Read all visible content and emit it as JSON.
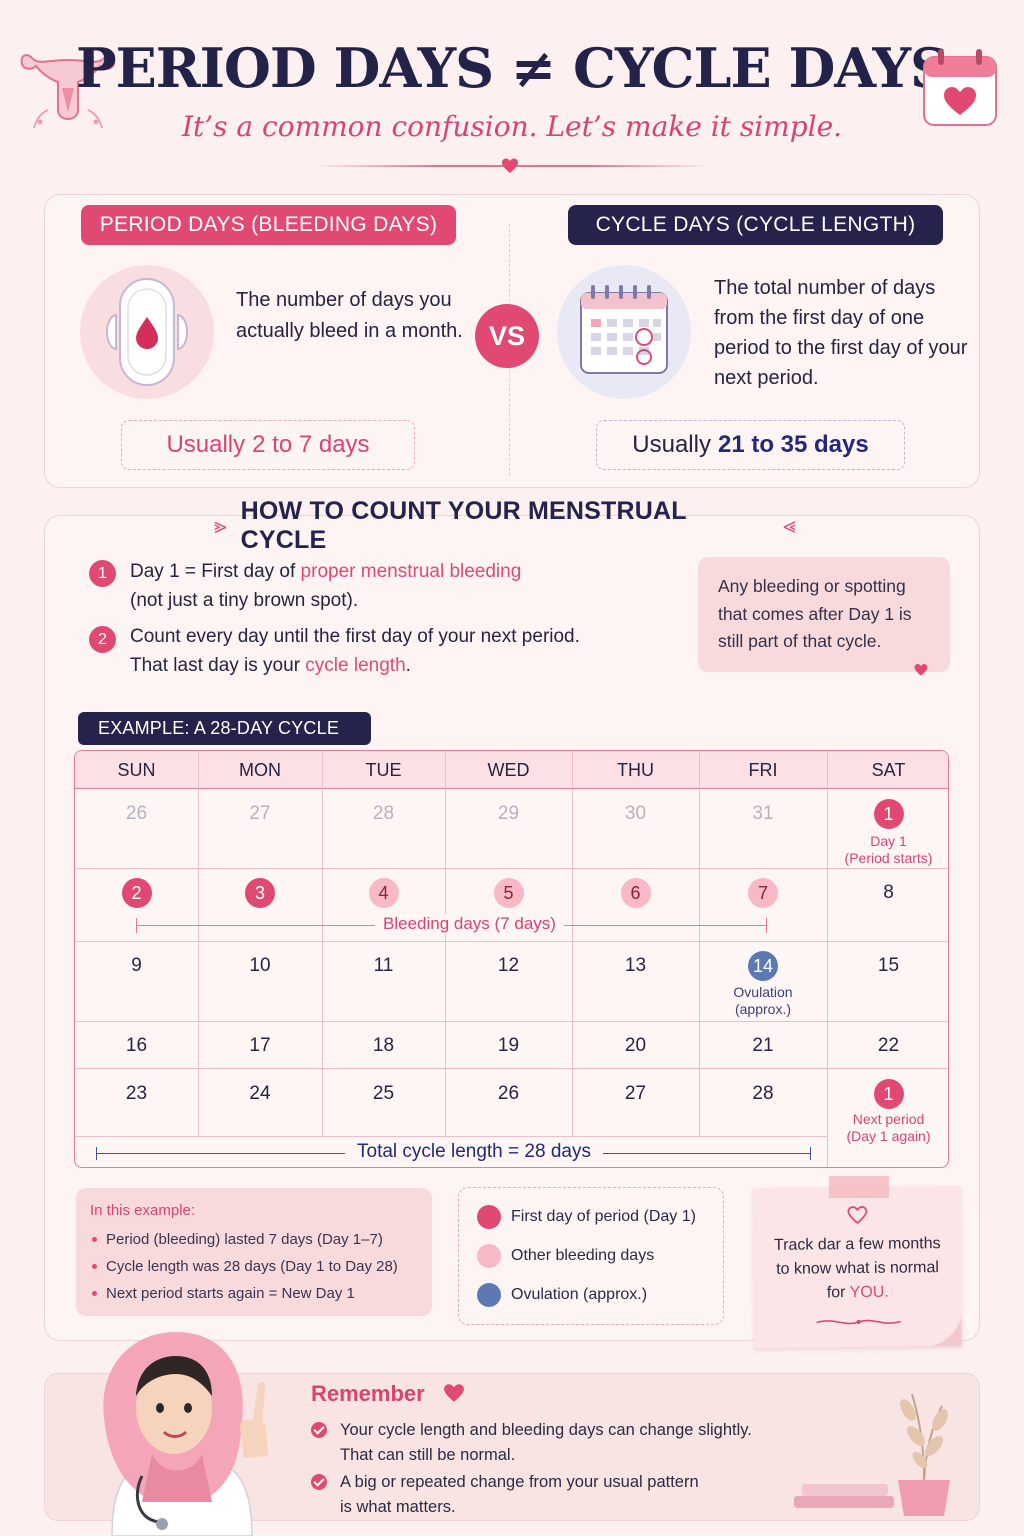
{
  "header": {
    "title": "PERIOD DAYS ≠ CYCLE DAYS",
    "subtitle": "It’s a common confusion. Let’s make it simple."
  },
  "comparison": {
    "period": {
      "label": "PERIOD DAYS (BLEEDING DAYS)",
      "description": "The number of days you actually bleed in a month.",
      "usually_prefix": "Usually",
      "usually_value": "2 to 7 days",
      "icon": "sanitary-pad-icon"
    },
    "vs": "VS",
    "cycle": {
      "label": "CYCLE DAYS (CYCLE LENGTH)",
      "description": "The total number of days from the first day of one period to the first day of your next period.",
      "usually_prefix": "Usually",
      "usually_value": "21 to 35 days",
      "icon": "calendar-icon"
    }
  },
  "how_to": {
    "heading": "HOW TO COUNT YOUR MENSTRUAL CYCLE",
    "steps": [
      {
        "num": "1",
        "pre": "Day 1 = First day of ",
        "highlight": "proper menstrual bleeding",
        "post": "(not just a tiny brown spot)."
      },
      {
        "num": "2",
        "pre": "Count every day until the first day of your next period.",
        "mid": "That last day is your ",
        "highlight": "cycle length",
        "post": "."
      }
    ],
    "note": "Any bleeding or spotting that comes after Day 1 is still part of that cycle."
  },
  "example": {
    "label": "EXAMPLE: A 28-DAY CYCLE",
    "weekdays": [
      "SUN",
      "MON",
      "TUE",
      "WED",
      "THU",
      "FRI",
      "SAT"
    ],
    "rows": [
      [
        "26",
        "27",
        "28",
        "29",
        "30",
        "31",
        "1"
      ],
      [
        "2",
        "3",
        "4",
        "5",
        "6",
        "7",
        "8"
      ],
      [
        "9",
        "10",
        "11",
        "12",
        "13",
        "14",
        "15"
      ],
      [
        "16",
        "17",
        "18",
        "19",
        "20",
        "21",
        "22"
      ],
      [
        "23",
        "24",
        "25",
        "26",
        "27",
        "28",
        "1"
      ]
    ],
    "captions": {
      "day1": "Day 1",
      "day1_sub": "(Period starts)",
      "ovulation": "Ovulation",
      "ovulation_sub": "(approx.)",
      "next": "Next period",
      "next_sub": "(Day 1 again)"
    },
    "bleeding_label": "Bleeding days (7 days)",
    "total_label": "Total cycle length = 28 days"
  },
  "summary": {
    "title": "In this example:",
    "items": [
      "Period (bleeding) lasted 7 days (Day 1–7)",
      "Cycle length was 28 days (Day 1 to Day 28)",
      "Next period starts again = New Day 1"
    ]
  },
  "legend": [
    {
      "label": "First day of period (Day 1)",
      "color": "#e04a72"
    },
    {
      "label": "Other bleeding days",
      "color": "#f7b9c5"
    },
    {
      "label": "Ovulation (approx.)",
      "color": "#5c79b4"
    }
  ],
  "tip": {
    "line1": "Track dar a few months",
    "line2": "to know what is normal",
    "line3_pre": "for ",
    "line3_hl": "YOU."
  },
  "remember": {
    "title": "Remember",
    "items": [
      {
        "l1": "Your cycle length and bleeding days can change slightly.",
        "l2": "That can still be normal."
      },
      {
        "l1": "A big or repeated change from your usual pattern",
        "l2": "is what matters."
      }
    ]
  },
  "colors": {
    "pink": "#e04a72",
    "navy": "#25234b",
    "light_pink": "#f7b9c5",
    "blue": "#5c79b4",
    "background": "#fcf1f0"
  }
}
